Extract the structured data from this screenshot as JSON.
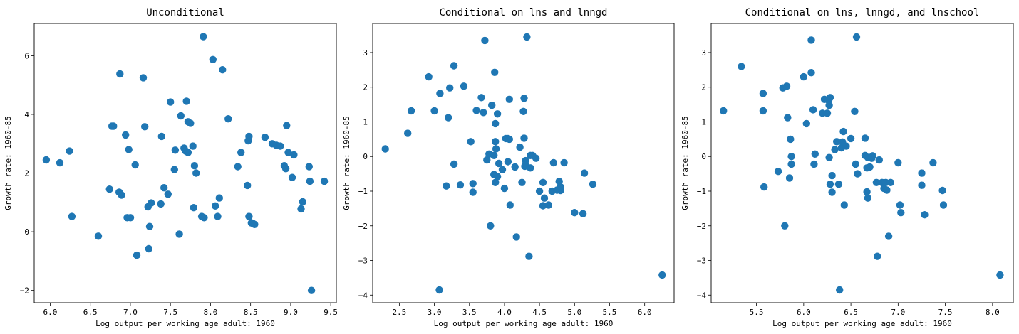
{
  "chart_data": [
    {
      "type": "scatter",
      "title": "Unconditional",
      "xlabel": "Log output per working age adult: 1960",
      "ylabel": "Growth rate: 1960-85",
      "xlim": [
        5.8,
        9.57
      ],
      "ylim": [
        -2.42,
        7.1
      ],
      "xticks": [
        6.0,
        6.5,
        7.0,
        7.5,
        8.0,
        8.5,
        9.0,
        9.5
      ],
      "xtick_labels": [
        "6.0",
        "6.5",
        "7.0",
        "7.5",
        "8.0",
        "8.5",
        "9.0",
        "9.5"
      ],
      "yticks": [
        -2,
        0,
        2,
        4,
        6
      ],
      "ytick_labels": [
        "−2",
        "0",
        "2",
        "4",
        "6"
      ],
      "x": [
        5.95,
        6.12,
        6.24,
        6.27,
        6.6,
        6.74,
        6.77,
        6.79,
        6.86,
        6.87,
        6.89,
        6.94,
        6.96,
        6.98,
        7.0,
        7.06,
        7.08,
        7.16,
        7.18,
        7.22,
        7.23,
        7.24,
        7.26,
        7.38,
        7.39,
        7.42,
        7.47,
        7.5,
        7.55,
        7.56,
        7.61,
        7.63,
        7.67,
        7.69,
        7.7,
        7.72,
        7.72,
        7.75,
        7.78,
        7.79,
        7.8,
        7.82,
        7.89,
        7.91,
        7.92,
        8.03,
        8.06,
        8.09,
        8.11,
        8.15,
        8.22,
        8.34,
        8.38,
        8.46,
        8.47,
        8.48,
        8.48,
        8.51,
        8.53,
        8.55,
        8.68,
        8.77,
        8.82,
        8.87,
        8.92,
        8.94,
        8.95,
        8.97,
        9.02,
        9.04,
        9.13,
        9.15,
        9.23,
        9.24,
        9.26,
        9.42
      ],
      "y": [
        2.45,
        2.35,
        2.75,
        0.52,
        -0.15,
        1.45,
        3.6,
        3.6,
        1.35,
        5.38,
        1.25,
        3.3,
        0.48,
        2.8,
        0.48,
        2.28,
        -0.8,
        5.25,
        3.58,
        0.85,
        -0.58,
        0.18,
        0.98,
        0.95,
        3.25,
        1.5,
        1.28,
        4.42,
        2.12,
        2.78,
        -0.08,
        3.95,
        2.85,
        2.75,
        4.45,
        3.75,
        2.7,
        3.7,
        2.92,
        0.82,
        2.25,
        2.0,
        0.52,
        6.65,
        0.48,
        5.87,
        0.88,
        0.52,
        1.15,
        5.52,
        3.85,
        2.22,
        2.7,
        1.58,
        3.1,
        0.52,
        3.25,
        0.3,
        0.28,
        0.25,
        3.22,
        3.0,
        2.95,
        2.92,
        2.25,
        2.15,
        3.62,
        2.7,
        1.85,
        2.62,
        0.78,
        1.02,
        2.22,
        1.72,
        -2.0,
        1.72
      ],
      "color": "#1f77b4",
      "grid": false
    },
    {
      "type": "scatter",
      "title": "Conditional on lns and lnngd",
      "xlabel": "Log output per working age adult: 1960",
      "ylabel": "Growth rate: 1960-85",
      "xlim": [
        2.12,
        6.42
      ],
      "ylim": [
        -4.22,
        3.84
      ],
      "xticks": [
        2.5,
        3.0,
        3.5,
        4.0,
        4.5,
        5.0,
        5.5,
        6.0
      ],
      "xtick_labels": [
        "2.5",
        "3.0",
        "3.5",
        "4.0",
        "4.5",
        "5.0",
        "5.5",
        "6.0"
      ],
      "yticks": [
        -4,
        -3,
        -2,
        -1,
        0,
        1,
        2,
        3
      ],
      "ytick_labels": [
        "−4",
        "−3",
        "−2",
        "−1",
        "0",
        "1",
        "2",
        "3"
      ],
      "x": [
        2.3,
        2.62,
        2.67,
        2.92,
        3.0,
        3.07,
        3.08,
        3.17,
        3.2,
        3.22,
        3.28,
        3.28,
        3.37,
        3.42,
        3.52,
        3.55,
        3.55,
        3.6,
        3.67,
        3.7,
        3.72,
        3.75,
        3.78,
        3.8,
        3.82,
        3.85,
        3.85,
        3.86,
        3.87,
        3.87,
        3.87,
        3.88,
        3.9,
        3.9,
        3.92,
        3.97,
        4.0,
        4.02,
        4.05,
        4.05,
        4.07,
        4.07,
        4.08,
        4.15,
        4.17,
        4.22,
        4.25,
        4.27,
        4.28,
        4.28,
        4.29,
        4.3,
        4.3,
        4.32,
        4.35,
        4.37,
        4.37,
        4.4,
        4.45,
        4.5,
        4.55,
        4.55,
        4.57,
        4.63,
        4.68,
        4.7,
        4.75,
        4.78,
        4.8,
        4.8,
        4.85,
        5.0,
        5.12,
        5.14,
        5.26,
        6.25
      ],
      "y": [
        0.22,
        0.67,
        1.32,
        2.3,
        1.32,
        -3.85,
        1.82,
        -0.85,
        1.12,
        1.98,
        2.62,
        -0.22,
        -0.82,
        2.03,
        0.43,
        -1.03,
        -0.78,
        1.33,
        1.7,
        1.27,
        3.35,
        -0.1,
        0.07,
        -2.0,
        1.48,
        -0.52,
        0.03,
        2.43,
        0.95,
        0.43,
        -0.75,
        0.22,
        1.23,
        -0.58,
        -0.2,
        -0.38,
        -0.92,
        0.52,
        0.52,
        -0.15,
        1.65,
        0.5,
        -1.4,
        -0.3,
        -2.32,
        0.27,
        -0.75,
        1.3,
        1.68,
        0.53,
        -0.28,
        -0.12,
        -0.25,
        3.45,
        -2.88,
        0.03,
        -0.33,
        0.03,
        -0.05,
        -1.0,
        -0.75,
        -1.42,
        -1.2,
        -1.4,
        -1.0,
        -0.18,
        -0.97,
        -0.72,
        -0.98,
        -0.88,
        -0.18,
        -1.62,
        -1.65,
        -0.48,
        -0.8,
        -3.42
      ],
      "color": "#1f77b4",
      "grid": false
    },
    {
      "type": "scatter",
      "title": "Conditional on lns, lnngd, and lnschool",
      "xlabel": "Log output per working age adult: 1960",
      "ylabel": "Growth rate: 1960-85",
      "xlim": [
        5.02,
        8.22
      ],
      "ylim": [
        -4.22,
        3.84
      ],
      "xticks": [
        5.5,
        6.0,
        6.5,
        7.0,
        7.5,
        8.0
      ],
      "xtick_labels": [
        "5.5",
        "6.0",
        "6.5",
        "7.0",
        "7.5",
        "8.0"
      ],
      "yticks": [
        -4,
        -3,
        -2,
        -1,
        0,
        1,
        2,
        3
      ],
      "ytick_labels": [
        "−4",
        "−3",
        "−2",
        "−1",
        "0",
        "1",
        "2",
        "3"
      ],
      "x": [
        5.15,
        5.34,
        5.57,
        5.57,
        5.58,
        5.73,
        5.78,
        5.8,
        5.82,
        5.83,
        5.85,
        5.86,
        5.87,
        5.87,
        6.0,
        6.03,
        6.08,
        6.08,
        6.1,
        6.11,
        6.12,
        6.2,
        6.22,
        6.25,
        6.26,
        6.27,
        6.27,
        6.28,
        6.28,
        6.3,
        6.3,
        6.33,
        6.35,
        6.37,
        6.38,
        6.4,
        6.41,
        6.42,
        6.43,
        6.45,
        6.5,
        6.54,
        6.55,
        6.56,
        6.57,
        6.65,
        6.65,
        6.67,
        6.67,
        6.68,
        6.68,
        6.7,
        6.72,
        6.73,
        6.77,
        6.78,
        6.8,
        6.83,
        6.85,
        6.87,
        6.88,
        6.9,
        6.92,
        7.0,
        7.02,
        7.03,
        7.25,
        7.25,
        7.28,
        7.37,
        7.47,
        7.48,
        8.08
      ],
      "y": [
        1.32,
        2.6,
        1.82,
        1.32,
        -0.88,
        -0.43,
        1.98,
        -2.0,
        2.03,
        1.12,
        -0.62,
        0.5,
        0.0,
        -0.22,
        2.3,
        0.95,
        3.36,
        2.42,
        1.35,
        -0.22,
        0.07,
        1.25,
        1.65,
        1.25,
        1.63,
        1.48,
        -0.03,
        1.7,
        -0.8,
        -0.55,
        -1.03,
        0.2,
        0.43,
        -0.8,
        -3.85,
        0.25,
        0.42,
        0.72,
        -1.4,
        0.3,
        0.52,
        1.3,
        -0.22,
        3.45,
        -0.5,
        0.53,
        0.03,
        -0.33,
        -1.02,
        -1.2,
        -0.03,
        -0.3,
        -0.05,
        0.02,
        -0.75,
        -2.88,
        -0.1,
        -0.75,
        -0.92,
        -0.75,
        -0.97,
        -2.3,
        -0.75,
        -0.18,
        -1.4,
        -1.62,
        -0.48,
        -0.83,
        -1.68,
        -0.18,
        -0.98,
        -1.4,
        -3.42
      ],
      "color": "#1f77b4",
      "grid": false
    }
  ]
}
